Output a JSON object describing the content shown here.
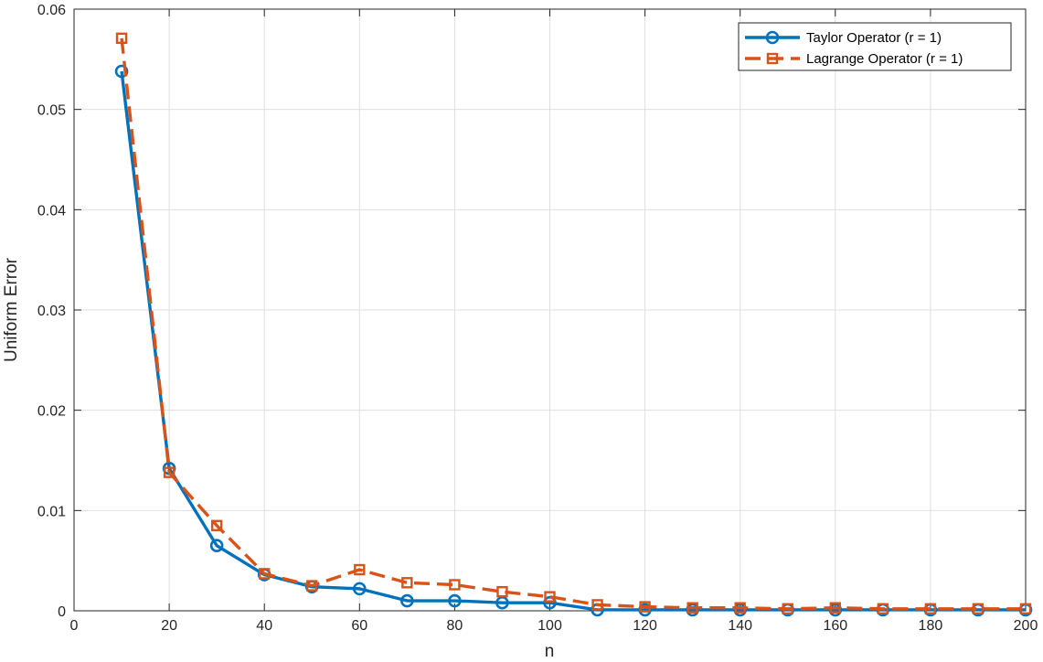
{
  "chart_data": {
    "type": "line",
    "xlabel": "n",
    "ylabel": "Uniform Error",
    "xlim": [
      0,
      200
    ],
    "ylim": [
      0,
      0.06
    ],
    "xticks": [
      "0",
      "20",
      "40",
      "60",
      "80",
      "100",
      "120",
      "140",
      "160",
      "180",
      "200"
    ],
    "yticks": [
      "0",
      "0.01",
      "0.02",
      "0.03",
      "0.04",
      "0.05",
      "0.06"
    ],
    "grid": true,
    "legend_position": "top-right",
    "x": [
      10,
      20,
      30,
      40,
      50,
      60,
      70,
      80,
      90,
      100,
      110,
      120,
      130,
      140,
      150,
      160,
      170,
      180,
      190,
      200
    ],
    "series": [
      {
        "name": "Taylor Operator (r = 1)",
        "color": "#0072BD",
        "line_style": "solid",
        "marker": "circle",
        "values": [
          0.0538,
          0.0142,
          0.0065,
          0.0036,
          0.0024,
          0.0022,
          0.001,
          0.001,
          0.0008,
          0.0008,
          0.0001,
          0.0001,
          0.0001,
          0.0001,
          0.0001,
          0.0001,
          0.0001,
          0.0001,
          0.0001,
          0.0001
        ]
      },
      {
        "name": "Lagrange Operator (r = 1)",
        "color": "#D95319",
        "line_style": "dashed",
        "marker": "square",
        "values": [
          0.0571,
          0.0138,
          0.0085,
          0.0037,
          0.0025,
          0.0041,
          0.0028,
          0.0026,
          0.0019,
          0.0014,
          0.0006,
          0.0004,
          0.0003,
          0.0003,
          0.0002,
          0.0003,
          0.0002,
          0.0002,
          0.0002,
          0.0002
        ]
      }
    ]
  }
}
